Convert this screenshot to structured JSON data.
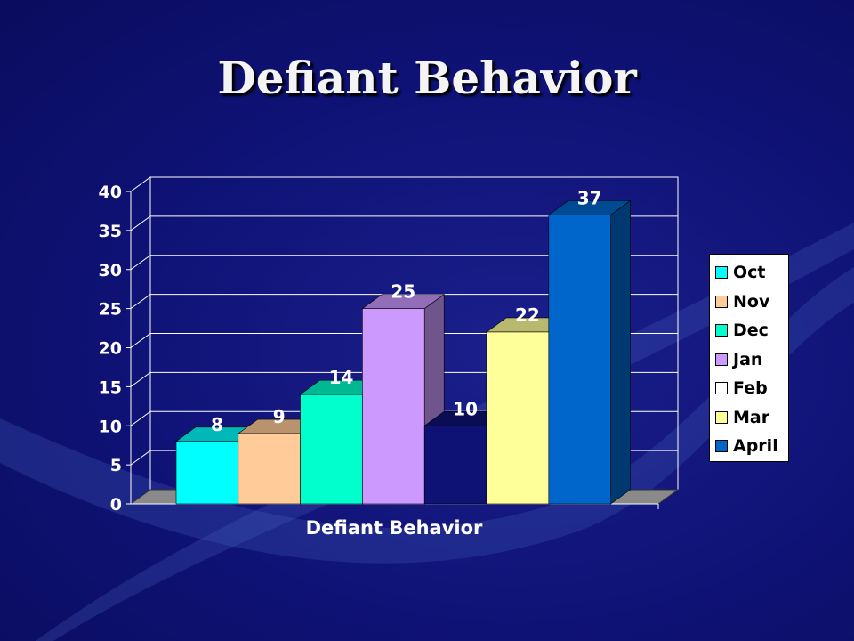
{
  "slide": {
    "title": "Defiant Behavior"
  },
  "chart_data": {
    "type": "bar",
    "categories": [
      "Defiant Behavior"
    ],
    "xlabel": "Defiant Behavior",
    "ylim": [
      0,
      40
    ],
    "yticks": [
      0,
      5,
      10,
      15,
      20,
      25,
      30,
      35,
      40
    ],
    "grid": true,
    "legend_position": "right",
    "series": [
      {
        "name": "Oct",
        "values": [
          8
        ],
        "color": "#00ffff"
      },
      {
        "name": "Nov",
        "values": [
          9
        ],
        "color": "#ffcc99"
      },
      {
        "name": "Dec",
        "values": [
          14
        ],
        "color": "#00ffcc"
      },
      {
        "name": "Jan",
        "values": [
          25
        ],
        "color": "#cc99ff"
      },
      {
        "name": "Feb",
        "values": [
          10
        ],
        "color": "#0f1275"
      },
      {
        "name": "Mar",
        "values": [
          22
        ],
        "color": "#ffff99"
      },
      {
        "name": "April",
        "values": [
          37
        ],
        "color": "#0066cc"
      }
    ]
  }
}
